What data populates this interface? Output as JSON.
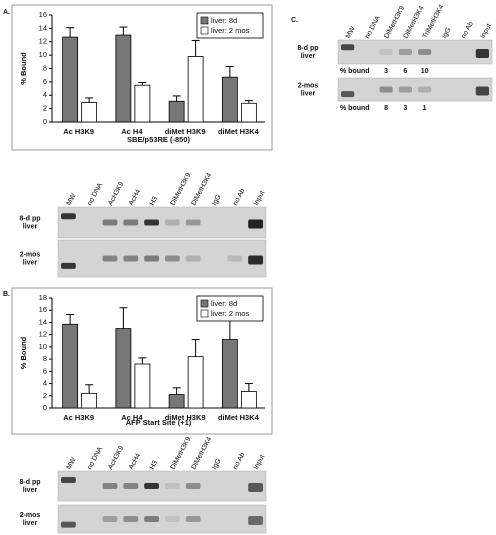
{
  "panels": [
    "A.",
    "B.",
    "C."
  ],
  "chart_data": [
    {
      "type": "bar",
      "x_label": "SBE/p53RE (-850)",
      "y_label": "% Bound",
      "categories": [
        "Ac H3K9",
        "Ac H4",
        "diMet H3K9",
        "diMet H3K4"
      ],
      "series": [
        {
          "name": "liver: 8d",
          "color": "#777777",
          "values": [
            12.7,
            13.0,
            3.1,
            6.7
          ],
          "errors": [
            1.4,
            1.2,
            0.8,
            1.6
          ]
        },
        {
          "name": "liver: 2 mos",
          "color": "#ffffff",
          "values": [
            2.9,
            5.5,
            9.8,
            2.8
          ],
          "errors": [
            0.7,
            0.4,
            2.4,
            0.4
          ]
        }
      ],
      "ylim": [
        0,
        16
      ],
      "yticks": [
        0,
        2,
        4,
        6,
        8,
        10,
        12,
        14,
        16
      ],
      "legend": "upper right"
    },
    {
      "type": "bar",
      "x_label": "AFP Start Site (+1)",
      "y_label": "% Bound",
      "categories": [
        "Ac H3K9",
        "Ac H4",
        "diMet H3K9",
        "diMet H3K4"
      ],
      "series": [
        {
          "name": "liver: 8d",
          "color": "#777777",
          "values": [
            13.7,
            13.0,
            2.2,
            11.2
          ],
          "errors": [
            1.6,
            3.4,
            1.1,
            3.2
          ]
        },
        {
          "name": "liver: 2 mos",
          "color": "#ffffff",
          "values": [
            2.4,
            7.2,
            8.4,
            2.7
          ],
          "errors": [
            1.4,
            1.0,
            2.8,
            1.3
          ]
        }
      ],
      "ylim": [
        0,
        18
      ],
      "yticks": [
        0,
        2,
        4,
        6,
        8,
        10,
        12,
        14,
        16,
        18
      ],
      "legend": "upper right"
    }
  ],
  "gels": [
    {
      "lanes": [
        "MW",
        "no DNA",
        "AcH3K9",
        "AcH4",
        "H3",
        "DiMetH3K9",
        "DiMetH3K4",
        "IgG",
        "no Ab",
        "Input"
      ],
      "rows": [
        {
          "label": [
            "8-d pp",
            "liver"
          ]
        },
        {
          "label": [
            "2-mos",
            "liver"
          ]
        }
      ]
    },
    {
      "lanes": [
        "MW",
        "no DNA",
        "AcH3K9",
        "AcH4",
        "H3",
        "DiMetH3K9",
        "DiMetH3K4",
        "IgG",
        "no Ab",
        "Input"
      ],
      "rows": [
        {
          "label": [
            "8-d pp",
            "liver"
          ]
        },
        {
          "label": [
            "2-mos",
            "liver"
          ]
        }
      ]
    },
    {
      "lanes": [
        "MW",
        "no DNA",
        "DiMetH3K9",
        "DiMetH3K4",
        "TriMetH3K4",
        "IgG",
        "no Ab",
        "Input"
      ],
      "rows": [
        {
          "label": [
            "8-d pp",
            "liver"
          ],
          "bound_label": "% bound",
          "bound": [
            3,
            6,
            10
          ]
        },
        {
          "label": [
            "2-mos",
            "liver"
          ],
          "bound_label": "% bound",
          "bound": [
            8,
            3,
            1
          ]
        }
      ]
    }
  ]
}
